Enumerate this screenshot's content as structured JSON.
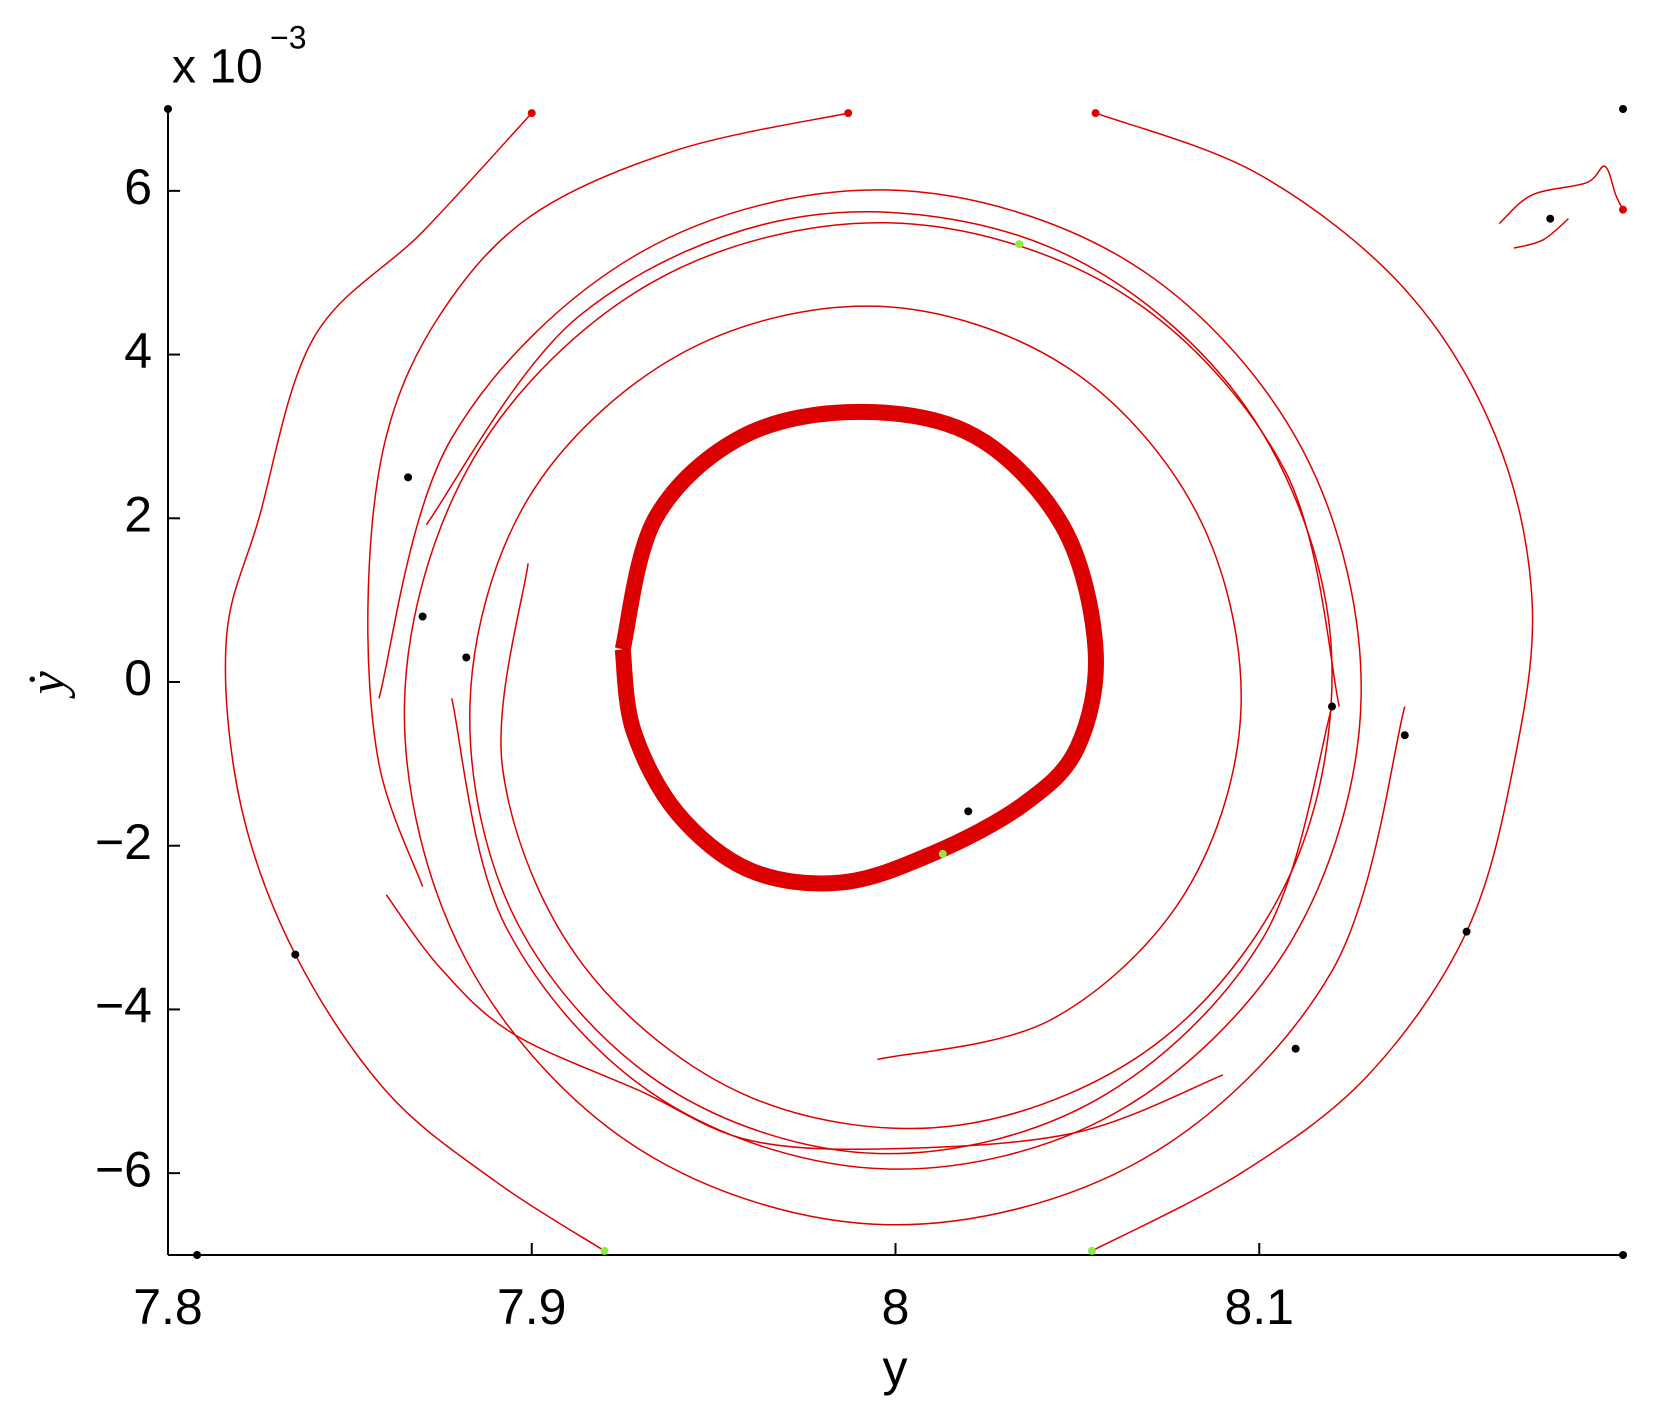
{
  "chart_data": {
    "type": "phase",
    "xlabel": "y",
    "ylabel": "ẏ",
    "y_multiplier": {
      "base": "x 10",
      "exponent": "−3"
    },
    "xlim": [
      7.8,
      8.2
    ],
    "ylim": [
      -7,
      7
    ],
    "xticks": [
      7.8,
      7.9,
      8,
      8.1
    ],
    "yticks": [
      {
        "value": -6,
        "label": "−6"
      },
      {
        "value": -4,
        "label": "−4"
      },
      {
        "value": -2,
        "label": "−2"
      },
      0,
      2,
      4,
      6
    ],
    "series": [
      {
        "color": "#dd0000",
        "line_width": 16,
        "x": [
          7.925,
          7.934,
          7.958,
          7.99,
          8.022,
          8.046,
          8.055,
          8.05,
          8.035,
          8.01,
          7.985,
          7.96,
          7.94,
          7.928,
          7.925
        ],
        "values": [
          0.4,
          2.0,
          3.0,
          3.3,
          3.0,
          1.9,
          0.4,
          -0.8,
          -1.5,
          -2.1,
          -2.45,
          -2.3,
          -1.6,
          -0.6,
          0.4
        ]
      },
      {
        "color": "#dd0000",
        "line_width": 1.5,
        "x": [
          7.871,
          7.913,
          7.975,
          8.042,
          8.094,
          8.119,
          8.111,
          8.074,
          8.018,
          7.96,
          7.914,
          7.892,
          7.899
        ],
        "values": [
          1.92,
          4.47,
          5.69,
          5.32,
          3.5,
          0.78,
          -2.09,
          -4.34,
          -5.41,
          -5.07,
          -3.45,
          -1.06,
          1.45
        ]
      },
      {
        "color": "#dd0000",
        "line_width": 1.5,
        "x": [
          7.858,
          7.878,
          7.93,
          7.998,
          8.065,
          8.112,
          8.128,
          8.109,
          8.061,
          7.998,
          7.936,
          7.893,
          7.878
        ],
        "values": [
          -0.2,
          2.98,
          5.25,
          6.01,
          5.11,
          2.83,
          -0.2,
          -3.15,
          -5.25,
          -5.95,
          -5.11,
          -3.0,
          -0.2
        ]
      },
      {
        "color": "#dd0000",
        "line_width": 1.5,
        "x": [
          8.12,
          8.101,
          8.055,
          7.995,
          7.937,
          7.896,
          7.883,
          7.899,
          7.941,
          7.995,
          8.047,
          8.083,
          8.095,
          8.08,
          8.043,
          7.995
        ],
        "values": [
          -0.3,
          -3.13,
          -5.11,
          -5.76,
          -4.95,
          -2.94,
          -0.3,
          2.24,
          4.01,
          4.59,
          3.85,
          2.05,
          -0.3,
          -2.55,
          -4.12,
          -4.61
        ]
      },
      {
        "color": "#dd0000",
        "line_width": 1.5,
        "x": [
          8.14,
          8.12,
          8.068,
          7.998,
          7.93,
          7.882,
          7.865,
          7.884,
          7.933,
          7.998,
          8.062,
          8.107,
          8.122
        ],
        "values": [
          -0.3,
          -3.53,
          -5.83,
          -6.63,
          -5.72,
          -3.4,
          -0.3,
          2.73,
          4.88,
          5.61,
          4.76,
          2.59,
          -0.3
        ]
      },
      {
        "color": "#dd0000",
        "line_width": 1.5,
        "x": [
          7.9,
          7.87,
          7.84,
          7.825,
          7.816,
          7.82,
          7.835,
          7.86,
          7.89,
          7.92
        ],
        "values": [
          6.95,
          5.5,
          4.2,
          2,
          0.5,
          -1.5,
          -3.33,
          -5,
          -6.1,
          -6.95
        ]
      },
      {
        "color": "#dd0000",
        "line_width": 1.5,
        "x": [
          8.055,
          8.1,
          8.14,
          8.165,
          8.175,
          8.17,
          8.157,
          8.13,
          8.095,
          8.054
        ],
        "values": [
          6.95,
          6.2,
          4.8,
          3,
          1,
          -1,
          -3.05,
          -4.8,
          -6,
          -6.95
        ]
      },
      {
        "color": "#dd0000",
        "line_width": 1.5,
        "x": [
          7.987,
          7.94,
          7.9,
          7.875,
          7.86,
          7.855,
          7.858,
          7.87
        ],
        "values": [
          6.95,
          6.5,
          5.7,
          4.5,
          3,
          1,
          -1,
          -2.5
        ]
      },
      {
        "color": "#dd0000",
        "line_width": 1.5,
        "x": [
          7.86,
          7.875,
          7.895,
          7.93,
          7.96,
          8.0,
          8.05,
          8.09
        ],
        "values": [
          -2.6,
          -3.5,
          -4.3,
          -5.0,
          -5.6,
          -5.7,
          -5.5,
          -4.8
        ]
      },
      {
        "color": "#dd0000",
        "line_width": 1.5,
        "x": [
          8.166,
          8.175,
          8.19,
          8.195,
          8.198,
          8.2
        ],
        "values": [
          5.6,
          5.95,
          6.1,
          6.3,
          5.95,
          5.77
        ]
      },
      {
        "color": "#dd0000",
        "line_width": 1.5,
        "x": [
          8.17,
          8.178,
          8.185
        ],
        "values": [
          5.3,
          5.4,
          5.66
        ]
      }
    ],
    "points": [
      {
        "color": "#000000",
        "x": [
          7.8,
          8.2,
          7.808,
          8.2,
          7.866,
          7.87,
          7.882,
          8.12,
          8.14,
          8.157,
          7.835,
          8.11,
          8.02,
          8.18
        ],
        "values": [
          7,
          7,
          -7,
          -7,
          2.5,
          0.8,
          0.3,
          -0.3,
          -0.65,
          -3.05,
          -3.33,
          -4.48,
          -1.58,
          5.66
        ]
      },
      {
        "color": "#dd0000",
        "x": [
          7.9,
          7.987,
          8.055,
          8.2
        ],
        "values": [
          6.95,
          6.95,
          6.95,
          5.77
        ]
      },
      {
        "color": "#88ee44",
        "x": [
          7.92,
          8.054,
          8.034,
          8.013
        ],
        "values": [
          -6.95,
          -6.95,
          5.35,
          -2.1
        ]
      }
    ]
  }
}
